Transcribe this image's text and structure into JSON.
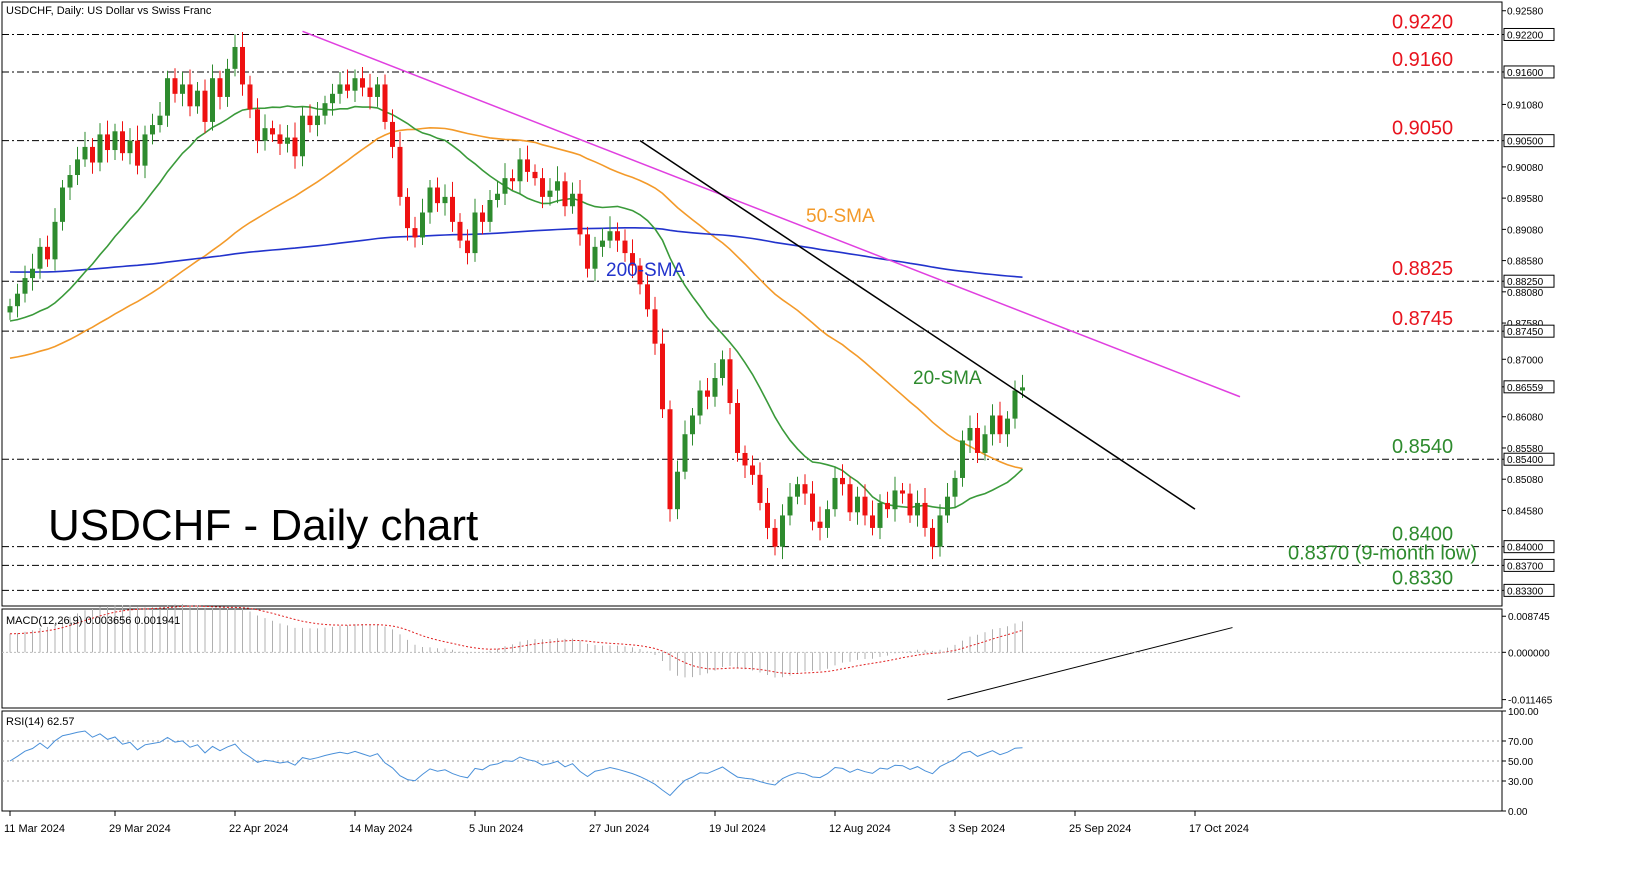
{
  "header": {
    "symbol_info": "USDCHF, Daily:  US Dollar vs Swiss Franc"
  },
  "watermark": "USDCHF - Daily chart",
  "colors": {
    "bull": "#2e8b2e",
    "bear": "#ee1111",
    "sma20": "#3a9a3a",
    "sma50": "#f39a2a",
    "sma200": "#2233cc",
    "trend_magenta": "#e040e0",
    "trend_black": "#000000",
    "level_red": "#e8141e",
    "level_green": "#2e8b2e",
    "macd_signal": "#e02020",
    "macd_hist": "#b0b0b0",
    "rsi_line": "#4a90d9"
  },
  "chart_data": [
    {
      "type": "candlestick",
      "title": "USDCHF, Daily:  US Dollar vs Swiss Franc",
      "ylim": [
        0.8305,
        0.9272
      ],
      "y_ticks": [
        "0.92580",
        "0.92200",
        "0.91600",
        "0.91080",
        "0.90500",
        "0.90080",
        "0.89580",
        "0.89080",
        "0.88580",
        "0.88250",
        "0.88080",
        "0.87580",
        "0.87450",
        "0.87000",
        "0.86559",
        "0.86080",
        "0.85580",
        "0.85400",
        "0.85080",
        "0.84580",
        "0.84000",
        "0.83700",
        "0.83300"
      ],
      "y_tick_values": [
        0.9258,
        0.922,
        0.916,
        0.9108,
        0.905,
        0.9008,
        0.8958,
        0.8908,
        0.8858,
        0.8825,
        0.8808,
        0.8758,
        0.8745,
        0.87,
        0.86559,
        0.8608,
        0.8558,
        0.854,
        0.8508,
        0.8458,
        0.84,
        0.837,
        0.833
      ],
      "highlighted_ticks": [
        "0.92200",
        "0.91600",
        "0.90500",
        "0.88250",
        "0.87450",
        "0.86559",
        "0.85400",
        "0.84000",
        "0.83700",
        "0.83300"
      ],
      "x_ticks": [
        "11 Mar 2024",
        "29 Mar 2024",
        "22 Apr 2024",
        "14 May 2024",
        "5 Jun 2024",
        "27 Jun 2024",
        "19 Jul 2024",
        "12 Aug 2024",
        "3 Sep 2024",
        "25 Sep 2024",
        "17 Oct 2024"
      ],
      "x_tick_index": [
        0,
        14,
        30,
        46,
        62,
        78,
        94,
        110,
        126,
        142,
        158
      ],
      "levels": [
        {
          "value": 0.922,
          "label": "0.9220",
          "color": "red"
        },
        {
          "value": 0.916,
          "label": "0.9160",
          "color": "red"
        },
        {
          "value": 0.905,
          "label": "0.9050",
          "color": "red"
        },
        {
          "value": 0.8825,
          "label": "0.8825",
          "color": "red"
        },
        {
          "value": 0.8745,
          "label": "0.8745",
          "color": "red"
        },
        {
          "value": 0.854,
          "label": "0.8540",
          "color": "green"
        },
        {
          "value": 0.84,
          "label": "0.8400",
          "color": "green"
        },
        {
          "value": 0.837,
          "label": "0.8370 (9-month low)",
          "color": "green"
        },
        {
          "value": 0.833,
          "label": "0.8330",
          "color": "green"
        }
      ],
      "indicator_labels": {
        "sma50": "50-SMA",
        "sma200": "200-SMA",
        "sma20": "20-SMA"
      },
      "closes": [
        0.8785,
        0.8805,
        0.883,
        0.8845,
        0.888,
        0.886,
        0.892,
        0.8975,
        0.8995,
        0.902,
        0.904,
        0.9015,
        0.906,
        0.9035,
        0.9065,
        0.903,
        0.905,
        0.901,
        0.906,
        0.9075,
        0.909,
        0.915,
        0.9125,
        0.914,
        0.9105,
        0.913,
        0.908,
        0.915,
        0.912,
        0.9165,
        0.92,
        0.914,
        0.91,
        0.905,
        0.907,
        0.906,
        0.9045,
        0.9055,
        0.9025,
        0.909,
        0.9075,
        0.909,
        0.911,
        0.9125,
        0.914,
        0.913,
        0.915,
        0.9135,
        0.912,
        0.914,
        0.908,
        0.904,
        0.896,
        0.891,
        0.8895,
        0.8935,
        0.8975,
        0.895,
        0.896,
        0.892,
        0.889,
        0.887,
        0.8935,
        0.892,
        0.8955,
        0.8965,
        0.899,
        0.8985,
        0.902,
        0.9,
        0.899,
        0.896,
        0.897,
        0.8985,
        0.8945,
        0.8965,
        0.89,
        0.8845,
        0.888,
        0.889,
        0.8905,
        0.889,
        0.887,
        0.885,
        0.882,
        0.878,
        0.8725,
        0.862,
        0.846,
        0.852,
        0.858,
        0.861,
        0.865,
        0.864,
        0.867,
        0.87,
        0.863,
        0.855,
        0.853,
        0.8515,
        0.847,
        0.843,
        0.84,
        0.845,
        0.848,
        0.85,
        0.8485,
        0.844,
        0.843,
        0.846,
        0.851,
        0.85,
        0.8455,
        0.848,
        0.845,
        0.843,
        0.847,
        0.846,
        0.849,
        0.8485,
        0.845,
        0.847,
        0.843,
        0.84,
        0.845,
        0.848,
        0.851,
        0.857,
        0.859,
        0.855,
        0.858,
        0.861,
        0.858,
        0.8605,
        0.865,
        0.8655
      ],
      "macd": {
        "label": "MACD(12,26,9) 0.003656 0.001941",
        "y_ticks": [
          "0.008745",
          "0.000000",
          "-0.011465"
        ],
        "y_tick_values": [
          0.008745,
          0.0,
          -0.011465
        ]
      },
      "rsi": {
        "label": "RSI(14) 62.57",
        "y_ticks": [
          "100.00",
          "70.00",
          "50.00",
          "30.00",
          "0.00"
        ],
        "y_tick_values": [
          100,
          70,
          50,
          30,
          0
        ]
      }
    }
  ]
}
